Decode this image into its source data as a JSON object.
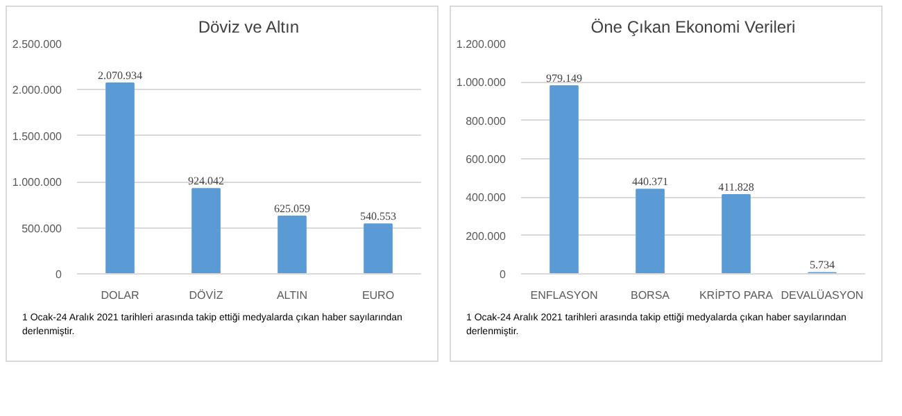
{
  "chart_data": [
    {
      "type": "bar",
      "title": "Döviz ve Altın",
      "categories": [
        "DOLAR",
        "DÖVİZ",
        "ALTIN",
        "EURO"
      ],
      "values": [
        2070934,
        924042,
        625059,
        540553
      ],
      "value_labels": [
        "2.070.934",
        "924.042",
        "625.059",
        "540.553"
      ],
      "color": "#5b9bd5",
      "ylim": [
        0,
        2500000
      ],
      "yticks": [
        {
          "value": 0,
          "label": "0"
        },
        {
          "value": 500000,
          "label": "500.000"
        },
        {
          "value": 1000000,
          "label": "1.000.000"
        },
        {
          "value": 1500000,
          "label": "1.500.000"
        },
        {
          "value": 2000000,
          "label": "2.000.000"
        },
        {
          "value": 2500000,
          "label": "2.500.000"
        }
      ],
      "grid": "y",
      "annotations": [
        "1 Ocak-24 Aralık 2021 tarihleri arasında takip ettiği medyalarda çıkan haber sayılarından derlenmiştir."
      ]
    },
    {
      "type": "bar",
      "title": "Öne Çıkan Ekonomi Verileri",
      "categories": [
        "ENFLASYON",
        "BORSA",
        "KRİPTO PARA",
        "DEVALÜASYON"
      ],
      "values": [
        979149,
        440371,
        411828,
        5734
      ],
      "value_labels": [
        "979.149",
        "440.371",
        "411.828",
        "5.734"
      ],
      "color": "#5b9bd5",
      "ylim": [
        0,
        1200000
      ],
      "yticks": [
        {
          "value": 0,
          "label": "0"
        },
        {
          "value": 200000,
          "label": "200.000"
        },
        {
          "value": 400000,
          "label": "400.000"
        },
        {
          "value": 600000,
          "label": "600.000"
        },
        {
          "value": 800000,
          "label": "800.000"
        },
        {
          "value": 1000000,
          "label": "1.000.000"
        },
        {
          "value": 1200000,
          "label": "1.200.000"
        }
      ],
      "grid": "y",
      "annotations": [
        "1 Ocak-24 Aralık 2021 tarihleri arasında takip ettiği medyalarda çıkan haber sayılarından derlenmiştir."
      ]
    }
  ]
}
